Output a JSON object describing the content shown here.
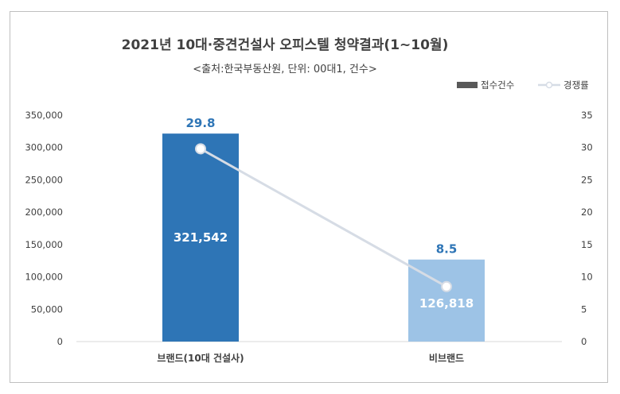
{
  "chart_data": {
    "type": "bar",
    "title": "2021년 10대·중견건설사 오피스텔 청약결과(1~10월)",
    "subtitle": "<출처:한국부동산원, 단위: 00대1, 건수>",
    "categories": [
      "브랜드(10대 건설사)",
      "비브랜드"
    ],
    "series": [
      {
        "name": "접수건수",
        "type": "bar",
        "axis": "left",
        "values": [
          321542,
          126818
        ],
        "labels": [
          "321,542",
          "126,818"
        ],
        "colors": [
          "#2e75b6",
          "#9dc3e6"
        ]
      },
      {
        "name": "경쟁률",
        "type": "line",
        "axis": "right",
        "values": [
          29.8,
          8.5
        ],
        "labels": [
          "29.8",
          "8.5"
        ],
        "color": "#d6dce5"
      }
    ],
    "y_left": {
      "ylim": [
        0,
        350000
      ],
      "ticks": [
        "0",
        "50,000",
        "100,000",
        "150,000",
        "200,000",
        "250,000",
        "300,000",
        "350,000"
      ]
    },
    "y_right": {
      "ylim": [
        0,
        35
      ],
      "ticks": [
        "0",
        "5",
        "10",
        "15",
        "20",
        "25",
        "30",
        "35"
      ]
    },
    "grid": false,
    "legend_position": "top-right"
  }
}
